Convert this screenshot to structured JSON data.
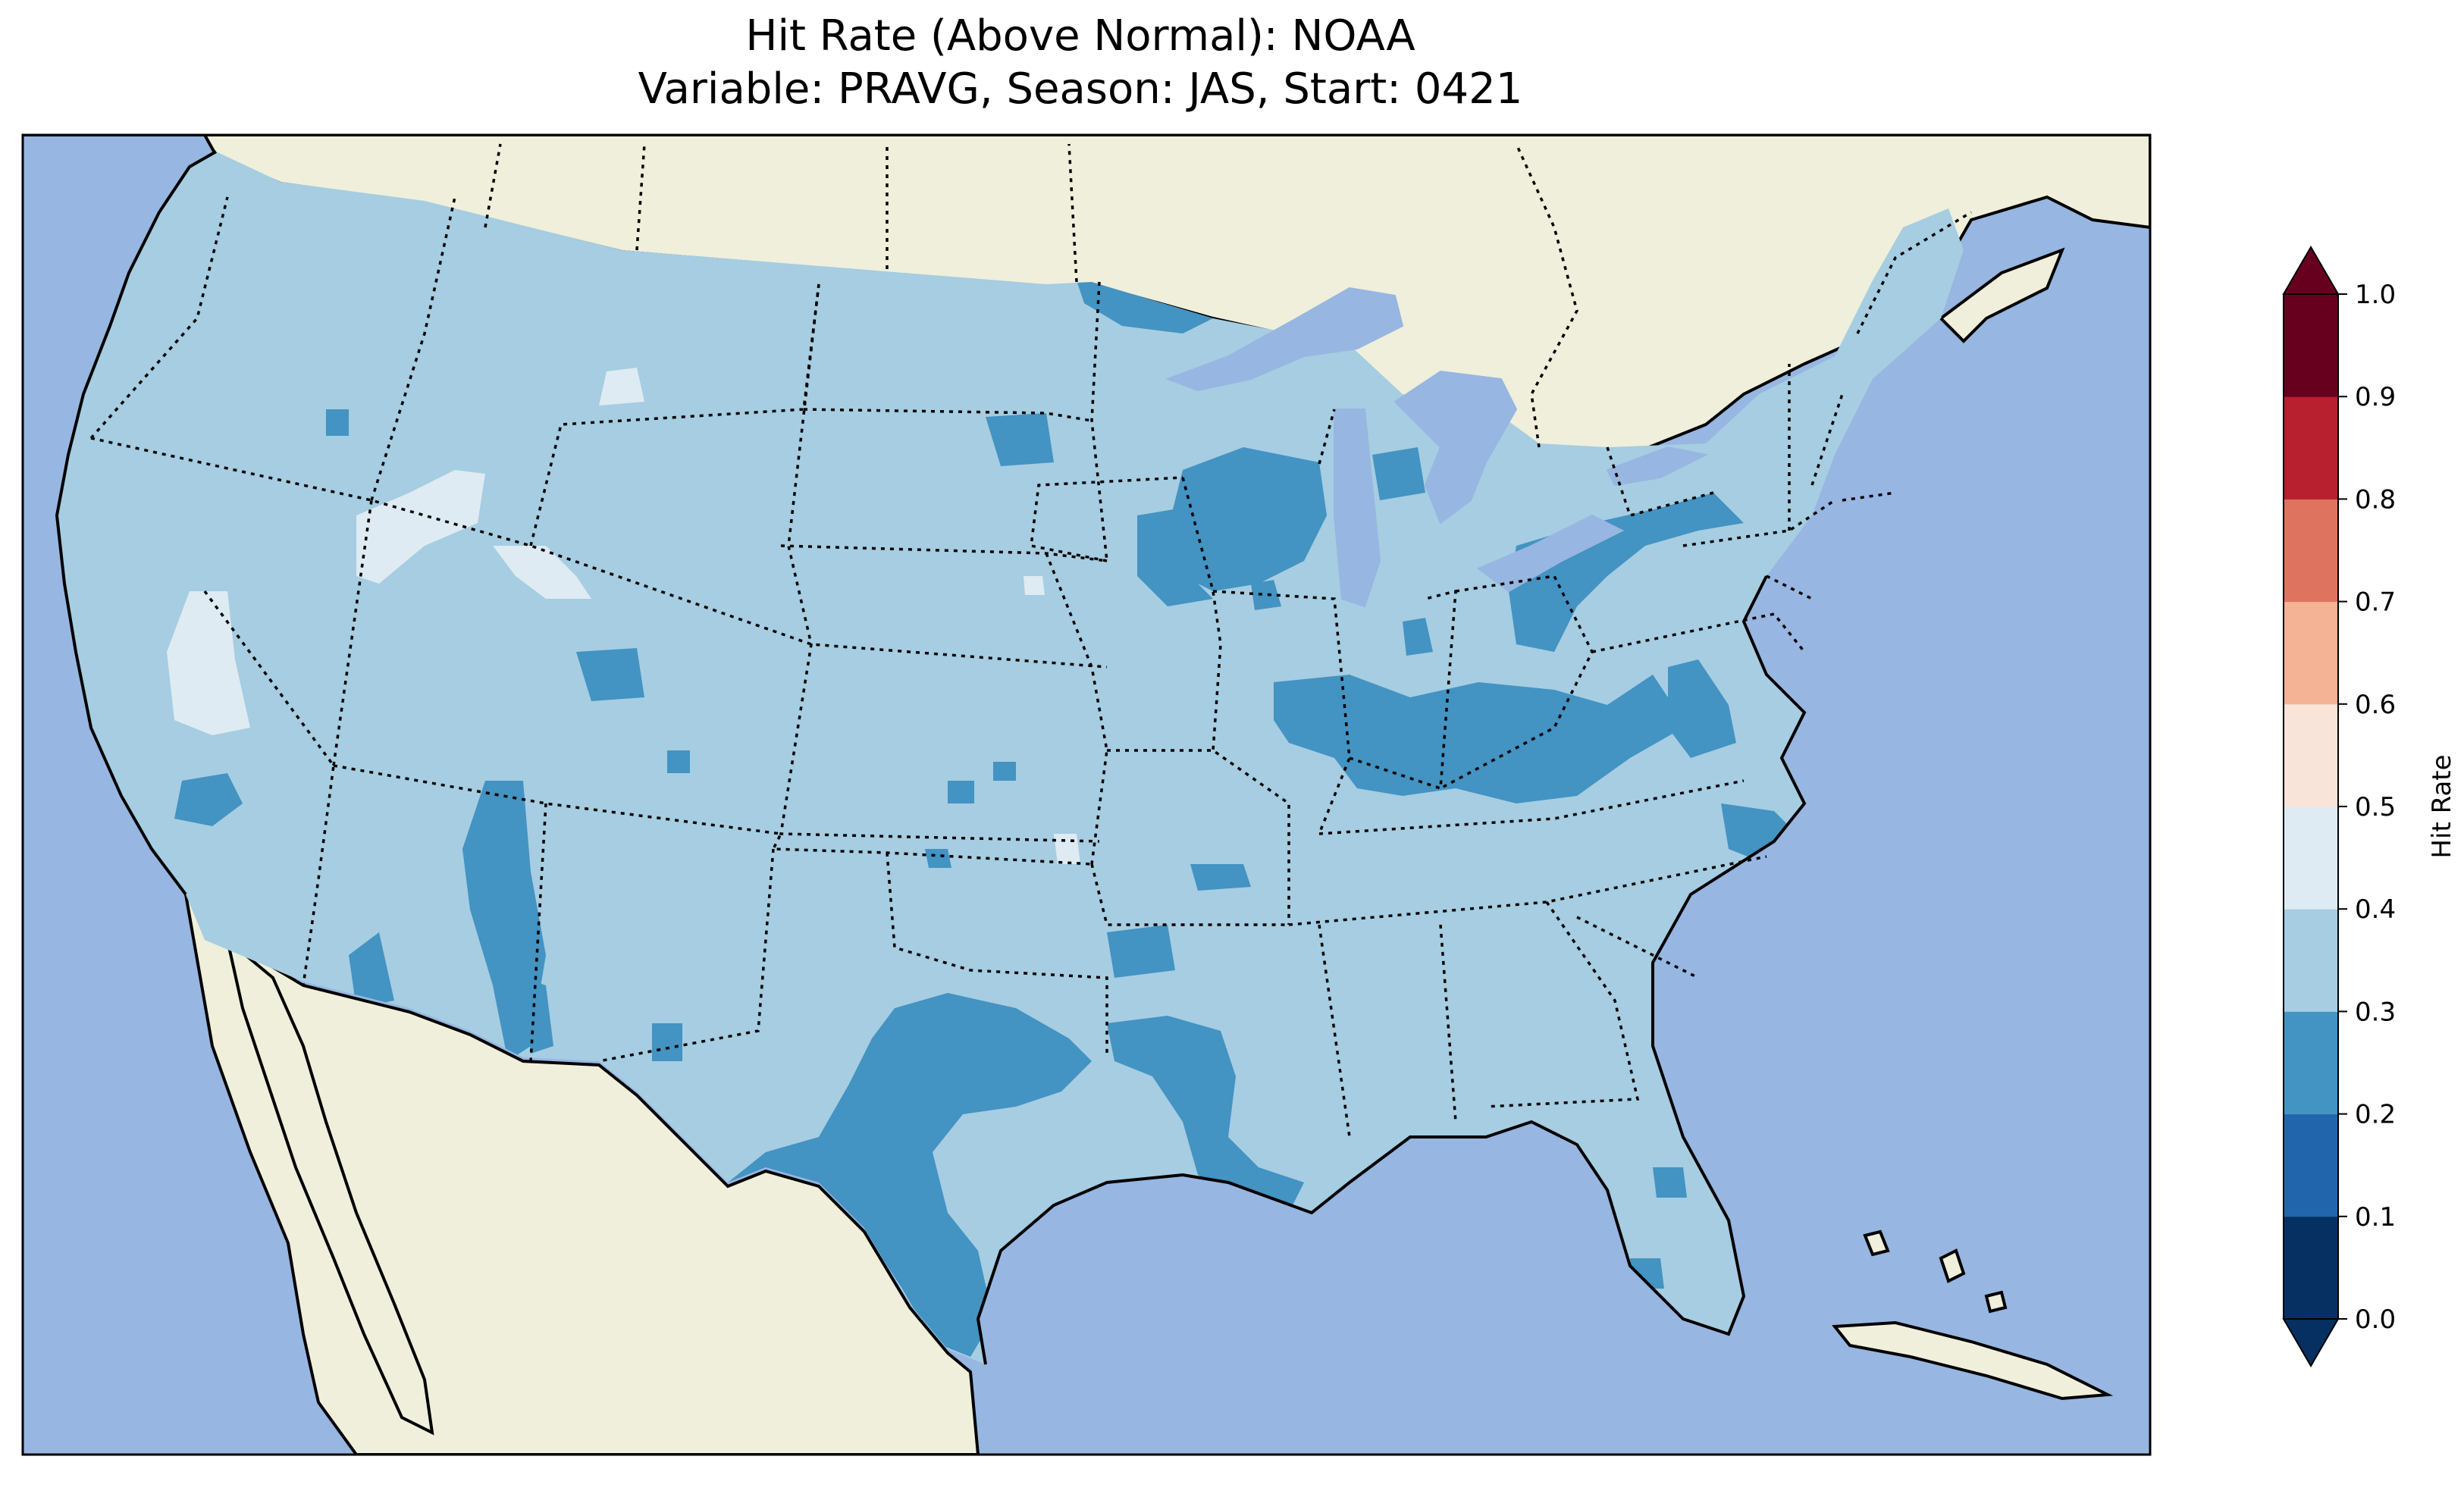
{
  "title": {
    "line1": "Hit Rate (Above Normal): NOAA",
    "line2": "Variable: PRAVG, Season: JAS, Start: 0421"
  },
  "colors": {
    "ocean": "#97b6e1",
    "land": "#efefdb",
    "lakes": "#97b6e1"
  },
  "colorbar": {
    "label": "Hit Rate",
    "ticks": [
      "0.0",
      "0.1",
      "0.2",
      "0.3",
      "0.4",
      "0.5",
      "0.6",
      "0.7",
      "0.8",
      "0.9",
      "1.0"
    ],
    "bins": [
      {
        "range": [
          0.0,
          0.1
        ],
        "color": "#053061"
      },
      {
        "range": [
          0.1,
          0.2
        ],
        "color": "#2166ac"
      },
      {
        "range": [
          0.2,
          0.3
        ],
        "color": "#4393c3"
      },
      {
        "range": [
          0.3,
          0.4
        ],
        "color": "#a6cde1"
      },
      {
        "range": [
          0.4,
          0.5
        ],
        "color": "#deebf3"
      },
      {
        "range": [
          0.5,
          0.6
        ],
        "color": "#f8e4d8"
      },
      {
        "range": [
          0.6,
          0.7
        ],
        "color": "#f4b394"
      },
      {
        "range": [
          0.7,
          0.8
        ],
        "color": "#de745f"
      },
      {
        "range": [
          0.8,
          0.9
        ],
        "color": "#b8202f"
      },
      {
        "range": [
          0.9,
          1.0
        ],
        "color": "#67001f"
      }
    ],
    "under_color": "#053061",
    "over_color": "#67001f"
  },
  "map": {
    "region": "Contiguous United States",
    "dominant_bin": "0.3-0.4",
    "secondary_bin": "0.2-0.3",
    "sparse_bin": "0.4-0.5"
  }
}
